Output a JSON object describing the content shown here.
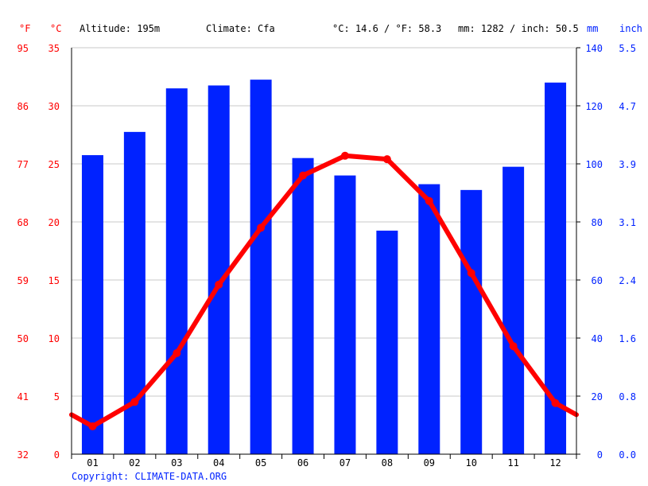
{
  "header": {
    "unit_f": "°F",
    "unit_c": "°C",
    "altitude": "Altitude: 195m",
    "climate": "Climate: Cfa",
    "temp_avg": "°C: 14.6 / °F: 58.3",
    "precip_total": "mm: 1282 / inch: 50.5",
    "unit_mm": "mm",
    "unit_inch": "inch"
  },
  "footer": {
    "copyright": "Copyright: CLIMATE-DATA.ORG"
  },
  "colors": {
    "temperature": "#ff0000",
    "precipitation": "#0022ff",
    "grid": "#c8c8c8"
  },
  "chart_data": {
    "type": "bar",
    "categories": [
      "01",
      "02",
      "03",
      "04",
      "05",
      "06",
      "07",
      "08",
      "09",
      "10",
      "11",
      "12"
    ],
    "series": [
      {
        "type": "bar",
        "axis": "right",
        "values": [
          103,
          111,
          126,
          127,
          129,
          102,
          96,
          77,
          93,
          91,
          99,
          128
        ]
      },
      {
        "type": "line",
        "axis": "left",
        "values": [
          2.4,
          4.5,
          8.7,
          14.6,
          19.5,
          24.0,
          25.7,
          25.4,
          21.8,
          15.6,
          9.3,
          4.4
        ]
      }
    ],
    "y_left": {
      "ticks": [
        0,
        5,
        10,
        15,
        20,
        25,
        30,
        35
      ],
      "ylim": [
        0,
        35
      ]
    },
    "y_left_f": {
      "ticks": [
        32,
        41,
        50,
        59,
        68,
        77,
        86,
        95
      ]
    },
    "y_right": {
      "ticks": [
        0,
        20,
        40,
        60,
        80,
        100,
        120,
        140
      ],
      "ylim": [
        0,
        140
      ]
    },
    "y_right_inch": {
      "ticks": [
        "0.0",
        "0.8",
        "1.6",
        "2.4",
        "3.1",
        "3.9",
        "4.7",
        "5.5"
      ]
    },
    "line_endpoints": {
      "left": 3.4,
      "right": 3.4
    },
    "grid": true
  }
}
